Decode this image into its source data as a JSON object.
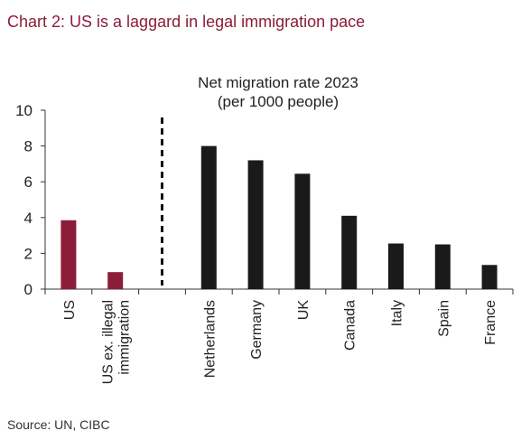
{
  "title": "Chart 2: US is a laggard in legal immigration pace",
  "source": "Source: UN, CIBC",
  "colors": {
    "title": "#8c1d3a",
    "us_bar": "#8c1d3a",
    "other_bar": "#1a1a1a",
    "axis": "#333333"
  },
  "chart_data": {
    "type": "bar",
    "annotation": [
      "Net migration rate 2023",
      "(per 1000 people)"
    ],
    "categories": [
      [
        "US"
      ],
      [
        "US ex. illegal",
        "immigration"
      ],
      [
        ""
      ],
      [
        "Netherlands"
      ],
      [
        "Germany"
      ],
      [
        "UK"
      ],
      [
        "Canada"
      ],
      [
        "Italy"
      ],
      [
        "Spain"
      ],
      [
        "France"
      ]
    ],
    "values": [
      3.85,
      0.95,
      null,
      8.0,
      7.2,
      6.45,
      4.1,
      2.55,
      2.5,
      1.35
    ],
    "highlight": [
      0,
      1
    ],
    "divider_after_index": 2,
    "ylim": [
      0,
      10
    ],
    "yticks": [
      0,
      2,
      4,
      6,
      8,
      10
    ],
    "xlabel": "",
    "ylabel": "",
    "grid": false
  }
}
